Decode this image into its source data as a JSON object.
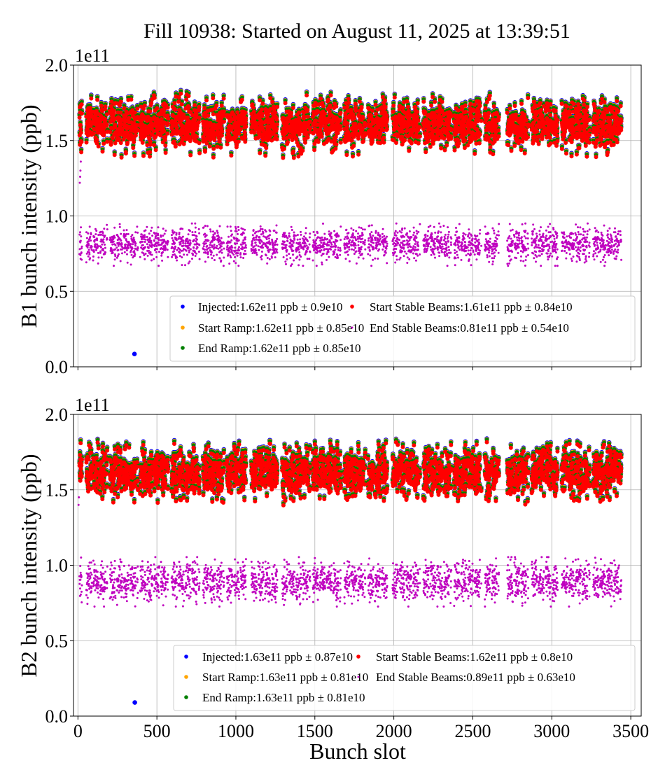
{
  "chart_data": {
    "type": "scatter",
    "title": "Fill 10938: Started on August 11, 2025 at 13:39:51",
    "xlabel": "Bunch slot",
    "xlim": [
      -28,
      3566
    ],
    "xticks": [
      "0",
      "500",
      "1000",
      "1500",
      "2000",
      "2500",
      "3000",
      "3500"
    ],
    "xtick_values": [
      0,
      500,
      1000,
      1500,
      2000,
      2500,
      3000,
      3500
    ],
    "grid": true,
    "legend_placement": "lower-right",
    "filled_slot_ranges": [
      [
        10,
        25
      ],
      [
        53,
        186
      ],
      [
        203,
        380
      ],
      [
        394,
        571
      ],
      [
        593,
        770
      ],
      [
        792,
        925
      ],
      [
        943,
        1071
      ],
      [
        1098,
        1266
      ],
      [
        1293,
        1470
      ],
      [
        1487,
        1664
      ],
      [
        1686,
        1819
      ],
      [
        1837,
        1965
      ],
      [
        1992,
        2165
      ],
      [
        2187,
        2364
      ],
      [
        2382,
        2554
      ],
      [
        2576,
        2665
      ],
      [
        2718,
        2851
      ],
      [
        2873,
        3041
      ],
      [
        3063,
        3240
      ],
      [
        3262,
        3440
      ]
    ],
    "panels": [
      {
        "ylabel": "B1 bunch intensity (ppb)",
        "offset_label": "1e11",
        "ylim": [
          0,
          2.0
        ],
        "yticks": [
          "0.0",
          "0.5",
          "1.0",
          "1.5",
          "2.0"
        ],
        "ytick_values": [
          0,
          0.5,
          1.0,
          1.5,
          2.0
        ],
        "series": [
          {
            "name": "Injected",
            "legend": "Injected:1.62e11 ppb ± 0.9e10",
            "color": "#0000ff",
            "mean": 1.62,
            "std": 0.09
          },
          {
            "name": "Start Ramp",
            "legend": "Start Ramp:1.62e11 ppb ± 0.85e10",
            "color": "#ffa500",
            "mean": 1.62,
            "std": 0.085
          },
          {
            "name": "End Ramp",
            "legend": "End Ramp:1.62e11 ppb ± 0.85e10",
            "color": "#008000",
            "mean": 1.62,
            "std": 0.085
          },
          {
            "name": "Start Stable Beams",
            "legend": "Start Stable Beams:1.61e11 ppb ± 0.84e10",
            "color": "#ff0000",
            "mean": 1.61,
            "std": 0.084
          },
          {
            "name": "End Stable Beams",
            "legend": "End Stable Beams:0.81e11 ppb ± 0.54e10",
            "color": "#bf00bf",
            "mean": 0.81,
            "std": 0.054
          }
        ],
        "extra_points": [
          {
            "series": "Injected",
            "x": 358,
            "y": 0.085
          },
          {
            "series": "End Stable Beams",
            "x": 12,
            "y": 1.22
          },
          {
            "series": "End Stable Beams",
            "x": 14,
            "y": 1.26
          },
          {
            "series": "End Stable Beams",
            "x": 16,
            "y": 1.3
          },
          {
            "series": "End Stable Beams",
            "x": 18,
            "y": 1.36
          }
        ]
      },
      {
        "ylabel": "B2 bunch intensity (ppb)",
        "offset_label": "1e11",
        "ylim": [
          0,
          2.0
        ],
        "yticks": [
          "0.0",
          "0.5",
          "1.0",
          "1.5",
          "2.0"
        ],
        "ytick_values": [
          0,
          0.5,
          1.0,
          1.5,
          2.0
        ],
        "series": [
          {
            "name": "Injected",
            "legend": "Injected:1.63e11 ppb ± 0.87e10",
            "color": "#0000ff",
            "mean": 1.63,
            "std": 0.087
          },
          {
            "name": "Start Ramp",
            "legend": "Start Ramp:1.63e11 ppb ± 0.81e10",
            "color": "#ffa500",
            "mean": 1.63,
            "std": 0.081
          },
          {
            "name": "End Ramp",
            "legend": "End Ramp:1.63e11 ppb ± 0.81e10",
            "color": "#008000",
            "mean": 1.63,
            "std": 0.081
          },
          {
            "name": "Start Stable Beams",
            "legend": "Start Stable Beams:1.62e11 ppb ± 0.8e10",
            "color": "#ff0000",
            "mean": 1.62,
            "std": 0.08
          },
          {
            "name": "End Stable Beams",
            "legend": "End Stable Beams:0.89e11 ppb ± 0.63e10",
            "color": "#bf00bf",
            "mean": 0.89,
            "std": 0.063
          }
        ],
        "extra_points": [
          {
            "series": "Injected",
            "x": 360,
            "y": 0.09
          },
          {
            "series": "End Stable Beams",
            "x": 4,
            "y": 1.4
          },
          {
            "series": "End Stable Beams",
            "x": 6,
            "y": 1.45
          }
        ]
      }
    ]
  }
}
